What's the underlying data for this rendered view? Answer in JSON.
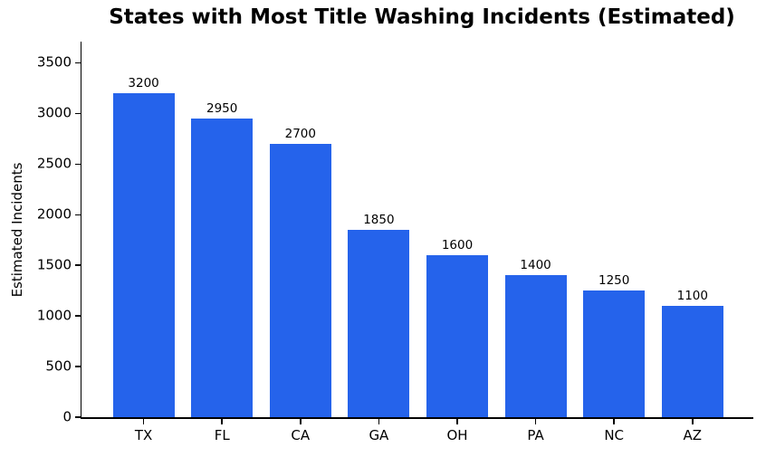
{
  "chart_data": {
    "type": "bar",
    "title": "States with Most Title Washing Incidents (Estimated)",
    "xlabel": "",
    "ylabel": "Estimated Incidents",
    "categories": [
      "TX",
      "FL",
      "CA",
      "GA",
      "OH",
      "PA",
      "NC",
      "AZ"
    ],
    "values": [
      3200,
      2950,
      2700,
      1850,
      1600,
      1400,
      1250,
      1100
    ],
    "yticks": [
      0,
      500,
      1000,
      1500,
      2000,
      2500,
      3000,
      3500
    ],
    "ylim": [
      0,
      3710
    ],
    "bar_color": "#2563eb",
    "background_color": "#ffffff",
    "text_color": "#000000",
    "grid": false,
    "legend": "none",
    "value_labels_shown": true
  }
}
